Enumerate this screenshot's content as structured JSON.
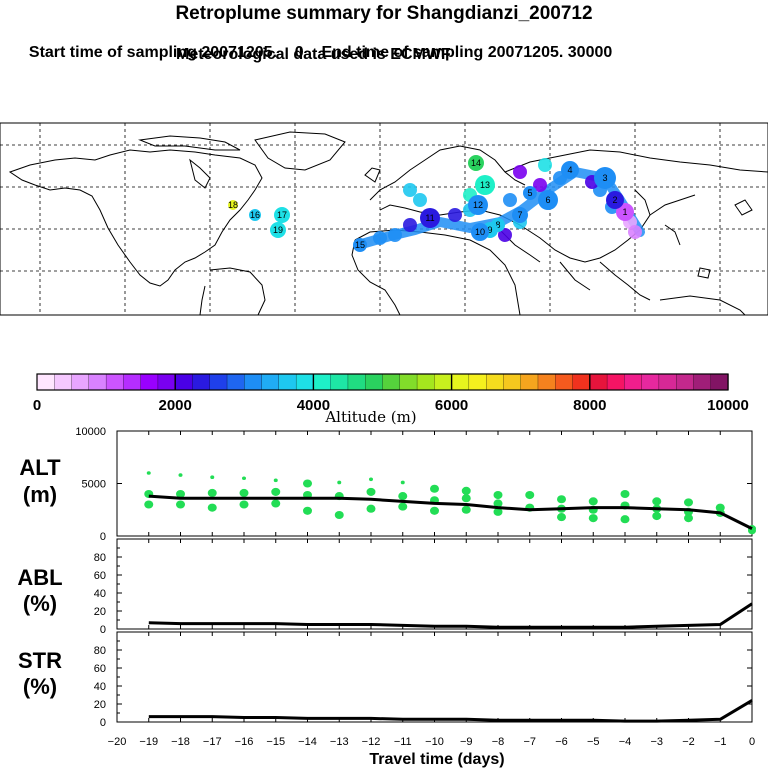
{
  "header": {
    "title": "Retroplume summary for Shangdianzi_200712",
    "subtitle_start": "Start time of sampling 20071205.    0",
    "subtitle_end": "End time of sampling 20071205. 30000",
    "subtitle_met": "Meteorological data used is ECMWF"
  },
  "colors": {
    "scatter": "#22dd55",
    "line": "#000000",
    "ocean": "#ffffff",
    "coast": "#000000"
  },
  "colorbar": {
    "label": "Altitude (m)",
    "ticks": [
      "0",
      "2000",
      "4000",
      "6000",
      "8000",
      "10000"
    ],
    "tick_values": [
      0,
      2000,
      4000,
      6000,
      8000,
      10000
    ],
    "colors": [
      "#ffe6ff",
      "#f5c8ff",
      "#e8a5ff",
      "#d982ff",
      "#cc55ff",
      "#b52eff",
      "#9900ff",
      "#7a00f0",
      "#4a00e6",
      "#2a1ae0",
      "#1f40ea",
      "#1f66f0",
      "#1e8ef5",
      "#20acf5",
      "#1ec8f0",
      "#1ee0e6",
      "#1ef0c8",
      "#1ee6a5",
      "#20dc82",
      "#2ad25f",
      "#55d23c",
      "#82dc2a",
      "#a5e61e",
      "#c8f01e",
      "#e6f51e",
      "#f5f01e",
      "#f5dc1e",
      "#f5c81e",
      "#f5a51e",
      "#f5821e",
      "#f55a1e",
      "#f0321e",
      "#e6143c",
      "#f51464",
      "#f01e8c",
      "#e6289e",
      "#d72896",
      "#c3288c",
      "#a01e78",
      "#821464"
    ]
  },
  "map": {
    "plumes": [
      {
        "label": "1",
        "color": "#cc55ff"
      },
      {
        "label": "2",
        "color": "#2a1ae0"
      },
      {
        "label": "3",
        "color": "#1e8ef5"
      },
      {
        "label": "4",
        "color": "#1e8ef5"
      },
      {
        "label": "5",
        "color": "#1e8ef5"
      },
      {
        "label": "6",
        "color": "#1e8ef5"
      },
      {
        "label": "7",
        "color": "#1e8ef5"
      },
      {
        "label": "8",
        "color": "#1ec8f0"
      },
      {
        "label": "9",
        "color": "#1ec8f0"
      },
      {
        "label": "10",
        "color": "#1e8ef5"
      },
      {
        "label": "11",
        "color": "#2a1ae0"
      },
      {
        "label": "12",
        "color": "#1e8ef5"
      },
      {
        "label": "13",
        "color": "#1ef0c8"
      },
      {
        "label": "14",
        "color": "#2ad25f"
      },
      {
        "label": "15",
        "color": "#1e8ef5"
      },
      {
        "label": "16",
        "color": "#1ec8f0"
      },
      {
        "label": "17",
        "color": "#1ee0e6"
      },
      {
        "label": "18",
        "color": "#e6f51e"
      },
      {
        "label": "19",
        "color": "#1ee0e6"
      }
    ]
  },
  "chart_data": [
    {
      "type": "scatter",
      "panel": "ALT",
      "title": "ALT\n(m)",
      "title_lines": [
        "ALT",
        "(m)"
      ],
      "ylim": [
        0,
        10000
      ],
      "yticks": [
        "10000",
        "5000",
        "0"
      ],
      "ytick_values": [
        10000,
        5000,
        0
      ],
      "xlim": [
        -20,
        0
      ],
      "x": [
        -19,
        -18,
        -17,
        -16,
        -15,
        -14,
        -13,
        -12,
        -11,
        -10,
        -9,
        -8,
        -7,
        -6,
        -5,
        -4,
        -3,
        -2,
        -1,
        0
      ],
      "line_values": [
        3800,
        3600,
        3600,
        3600,
        3600,
        3600,
        3600,
        3500,
        3300,
        3100,
        3000,
        2700,
        2500,
        2600,
        2700,
        2700,
        2600,
        2500,
        2200,
        700
      ],
      "scatter_points": [
        [
          -19,
          6000
        ],
        [
          -19,
          4000
        ],
        [
          -19,
          3000
        ],
        [
          -18,
          5800
        ],
        [
          -18,
          4000
        ],
        [
          -18,
          3000
        ],
        [
          -17,
          5600
        ],
        [
          -17,
          4100
        ],
        [
          -17,
          2700
        ],
        [
          -16,
          5500
        ],
        [
          -16,
          4100
        ],
        [
          -16,
          3000
        ],
        [
          -15,
          5300
        ],
        [
          -15,
          4200
        ],
        [
          -15,
          3100
        ],
        [
          -14,
          5000
        ],
        [
          -14,
          3900
        ],
        [
          -14,
          2400
        ],
        [
          -13,
          5100
        ],
        [
          -13,
          3800
        ],
        [
          -13,
          2000
        ],
        [
          -12,
          5400
        ],
        [
          -12,
          4200
        ],
        [
          -12,
          2600
        ],
        [
          -11,
          5100
        ],
        [
          -11,
          3800
        ],
        [
          -11,
          2800
        ],
        [
          -10,
          4500
        ],
        [
          -10,
          3400
        ],
        [
          -10,
          2400
        ],
        [
          -9,
          4300
        ],
        [
          -9,
          3600
        ],
        [
          -9,
          2500
        ],
        [
          -8,
          3900
        ],
        [
          -8,
          3100
        ],
        [
          -8,
          2300
        ],
        [
          -7,
          3900
        ],
        [
          -7,
          2700
        ],
        [
          -6,
          3500
        ],
        [
          -6,
          2600
        ],
        [
          -6,
          1800
        ],
        [
          -5,
          3300
        ],
        [
          -5,
          2500
        ],
        [
          -5,
          1700
        ],
        [
          -4,
          4000
        ],
        [
          -4,
          2900
        ],
        [
          -4,
          1600
        ],
        [
          -3,
          3300
        ],
        [
          -3,
          2600
        ],
        [
          -3,
          1900
        ],
        [
          -2,
          3200
        ],
        [
          -2,
          2300
        ],
        [
          -2,
          1700
        ],
        [
          -1,
          2700
        ],
        [
          -1,
          2200
        ],
        [
          0,
          700
        ],
        [
          0,
          500
        ]
      ]
    },
    {
      "type": "line",
      "panel": "ABL",
      "title": "ABL\n(%)",
      "title_lines": [
        "ABL",
        "(%)"
      ],
      "ylim": [
        0,
        100
      ],
      "yticks": [
        "80",
        "60",
        "40",
        "20",
        "0"
      ],
      "ytick_values": [
        80,
        60,
        40,
        20,
        0
      ],
      "xlim": [
        -20,
        0
      ],
      "x": [
        -19,
        -18,
        -17,
        -16,
        -15,
        -14,
        -13,
        -12,
        -11,
        -10,
        -9,
        -8,
        -7,
        -6,
        -5,
        -4,
        -3,
        -2,
        -1,
        0
      ],
      "values": [
        7,
        6,
        6,
        6,
        6,
        5,
        5,
        5,
        4,
        3,
        3,
        2,
        2,
        2,
        2,
        2,
        3,
        4,
        5,
        28
      ]
    },
    {
      "type": "line",
      "panel": "STR",
      "title": "STR\n(%)",
      "title_lines": [
        "STR",
        "(%)"
      ],
      "ylim": [
        0,
        100
      ],
      "yticks": [
        "80",
        "60",
        "40",
        "20",
        "0"
      ],
      "ytick_values": [
        80,
        60,
        40,
        20,
        0
      ],
      "xlim": [
        -20,
        0
      ],
      "x": [
        -19,
        -18,
        -17,
        -16,
        -15,
        -14,
        -13,
        -12,
        -11,
        -10,
        -9,
        -8,
        -7,
        -6,
        -5,
        -4,
        -3,
        -2,
        -1,
        0
      ],
      "values": [
        6,
        6,
        6,
        5,
        5,
        4,
        4,
        4,
        3,
        3,
        3,
        2,
        2,
        2,
        2,
        1,
        1,
        2,
        3,
        24
      ]
    }
  ],
  "xaxis": {
    "label": "Travel time (days)",
    "ticks": [
      "−20",
      "−19",
      "−18",
      "−17",
      "−16",
      "−15",
      "−14",
      "−13",
      "−12",
      "−11",
      "−10",
      "−9",
      "−8",
      "−7",
      "−6",
      "−5",
      "−4",
      "−3",
      "−2",
      "−1",
      "0"
    ],
    "tick_values": [
      -20,
      -19,
      -18,
      -17,
      -16,
      -15,
      -14,
      -13,
      -12,
      -11,
      -10,
      -9,
      -8,
      -7,
      -6,
      -5,
      -4,
      -3,
      -2,
      -1,
      0
    ]
  }
}
